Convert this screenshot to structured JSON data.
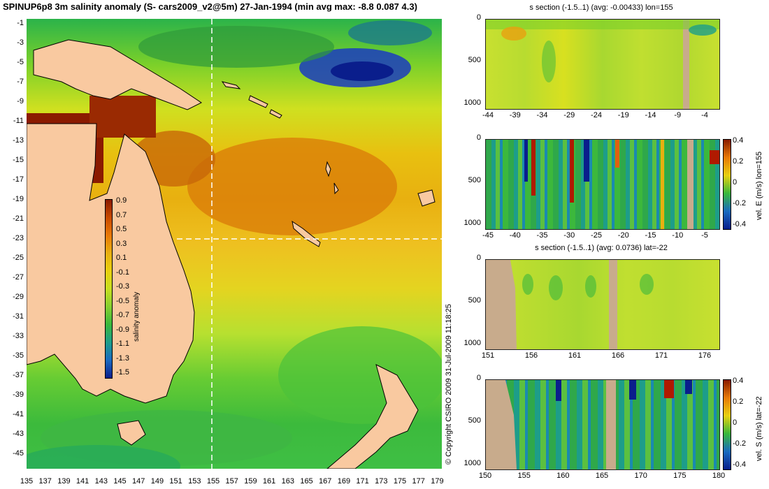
{
  "title": "SPINUP6p8 3m salinity anomaly (S- cars2009_v2@5m) 27-Jan-1994 (min avg max: -8.8 0.087 4.3)",
  "map": {
    "y_ticks": [
      "-1",
      "-3",
      "-5",
      "-7",
      "-9",
      "-11",
      "-13",
      "-15",
      "-17",
      "-19",
      "-21",
      "-23",
      "-25",
      "-27",
      "-29",
      "-31",
      "-33",
      "-35",
      "-37",
      "-39",
      "-41",
      "-43",
      "-45"
    ],
    "x_ticks": [
      "135",
      "137",
      "139",
      "141",
      "143",
      "145",
      "147",
      "149",
      "151",
      "153",
      "155",
      "157",
      "159",
      "161",
      "163",
      "165",
      "167",
      "169",
      "171",
      "173",
      "175",
      "177",
      "179"
    ],
    "colorbar": {
      "label": "salinity anomaly",
      "ticks": [
        "0.9",
        "0.7",
        "0.5",
        "0.3",
        "0.1",
        "-0.1",
        "-0.3",
        "-0.5",
        "-0.7",
        "-0.9",
        "-1.1",
        "-1.3",
        "-1.5"
      ]
    }
  },
  "copyright": "© Copyright CSIRO 2009   31-Jul-2009 11:18:25",
  "panels": [
    {
      "title": "s section (-1.5..1) (avg: -0.00433) lon=155",
      "y_ticks": [
        "0",
        "500",
        "1000"
      ],
      "x_ticks": [
        "-44",
        "-39",
        "-34",
        "-29",
        "-24",
        "-19",
        "-14",
        "-9",
        "-4"
      ],
      "side_label": ""
    },
    {
      "title": "",
      "y_ticks": [
        "0",
        "500",
        "1000"
      ],
      "x_ticks": [
        "-45",
        "-40",
        "-35",
        "-30",
        "-25",
        "-20",
        "-15",
        "-10",
        "-5"
      ],
      "side_label": "vel. E (m/s) lon=155",
      "cbar_ticks": [
        "0.4",
        "0.2",
        "0",
        "-0.2",
        "-0.4"
      ]
    },
    {
      "title": "s section (-1.5..1) (avg: 0.0736) lat=-22",
      "y_ticks": [
        "0",
        "500",
        "1000"
      ],
      "x_ticks": [
        "151",
        "156",
        "161",
        "166",
        "171",
        "176"
      ],
      "side_label": ""
    },
    {
      "title": "",
      "y_ticks": [
        "0",
        "500",
        "1000"
      ],
      "x_ticks": [
        "150",
        "155",
        "160",
        "165",
        "170",
        "175",
        "180"
      ],
      "side_label": "vel. S (m/s) lat=-22",
      "cbar_ticks": [
        "0.4",
        "0.2",
        "0",
        "-0.2",
        "-0.4"
      ]
    }
  ],
  "colors": {
    "land": "#f9c9a0",
    "section_land": "#c8ab8c",
    "high": "#8b1a00",
    "mid": "#e8d010",
    "low": "#0a1e8c"
  }
}
